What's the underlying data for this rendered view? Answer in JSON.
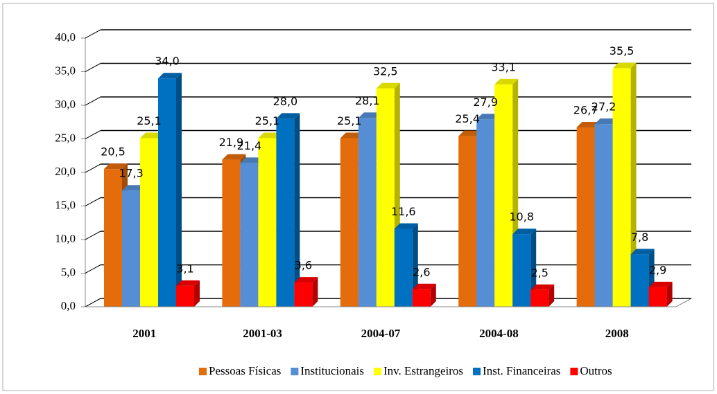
{
  "chart_data": {
    "type": "bar3d",
    "categories": [
      "2001",
      "2001-03",
      "2004-07",
      "2004-08",
      "2008"
    ],
    "series": [
      {
        "name": "Pessoas Físicas",
        "color": "#e46c0a",
        "values": [
          20.5,
          21.9,
          25.1,
          25.4,
          26.7
        ],
        "value_labels": [
          "20,5",
          "21,9",
          "25,1",
          "25,4",
          "26,7"
        ]
      },
      {
        "name": "Institucionais",
        "color": "#558ed5",
        "values": [
          17.3,
          21.4,
          28.1,
          27.9,
          27.2
        ],
        "value_labels": [
          "17,3",
          "21,4",
          "28,1",
          "27,9",
          "27,2"
        ]
      },
      {
        "name": "Inv. Estrangeiros",
        "color": "#ffff00",
        "values": [
          25.1,
          25.1,
          32.5,
          33.1,
          35.5
        ],
        "value_labels": [
          "25,1",
          "25,1",
          "32,5",
          "33,1",
          "35,5"
        ]
      },
      {
        "name": "Inst. Financeiras",
        "color": "#0070c0",
        "values": [
          34.0,
          28.0,
          11.6,
          10.8,
          7.8
        ],
        "value_labels": [
          "34,0",
          "28,0",
          "11,6",
          "10,8",
          "7,8"
        ]
      },
      {
        "name": "Outros",
        "color": "#ff0000",
        "values": [
          3.1,
          3.6,
          2.6,
          2.5,
          2.9
        ],
        "value_labels": [
          "3,1",
          "3,6",
          "2,6",
          "2,5",
          "2,9"
        ]
      }
    ],
    "ylim": [
      0,
      40
    ],
    "yticks": [
      {
        "value": 0,
        "label": "0,0"
      },
      {
        "value": 5,
        "label": "5,0"
      },
      {
        "value": 10,
        "label": "10,0"
      },
      {
        "value": 15,
        "label": "15,0"
      },
      {
        "value": 20,
        "label": "20,0"
      },
      {
        "value": 25,
        "label": "25,0"
      },
      {
        "value": 30,
        "label": "30,0"
      },
      {
        "value": 35,
        "label": "35,0"
      },
      {
        "value": 40,
        "label": "40,0"
      }
    ],
    "grid": true,
    "legend": "bottom"
  }
}
